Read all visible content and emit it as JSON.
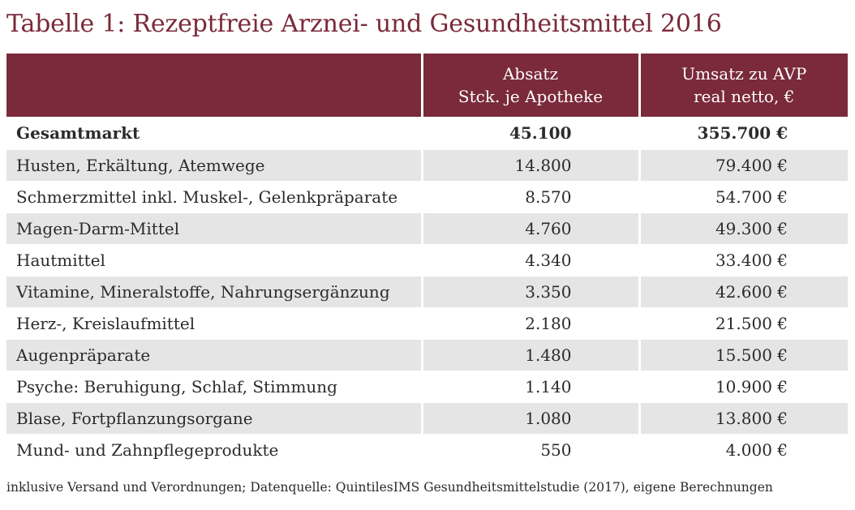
{
  "title": "Tabelle 1: Rezeptfreie Arznei- und Gesundheitsmittel 2016",
  "columns": {
    "label": "",
    "absatz_line1": "Absatz",
    "absatz_line2": "Stck. je Apotheke",
    "umsatz_line1": "Umsatz zu AVP",
    "umsatz_line2": "real netto, €"
  },
  "rows": [
    {
      "label": "Gesamtmarkt",
      "absatz": "45.100",
      "umsatz": "355.700 €"
    },
    {
      "label": "Husten, Erkältung, Atemwege",
      "absatz": "14.800",
      "umsatz": "79.400 €"
    },
    {
      "label": "Schmerzmittel inkl. Muskel-, Gelenkpräparate",
      "absatz": "8.570",
      "umsatz": "54.700 €"
    },
    {
      "label": "Magen-Darm-Mittel",
      "absatz": "4.760",
      "umsatz": "49.300 €"
    },
    {
      "label": "Hautmittel",
      "absatz": "4.340",
      "umsatz": "33.400 €"
    },
    {
      "label": "Vitamine, Mineralstoffe, Nahrungsergänzung",
      "absatz": "3.350",
      "umsatz": "42.600 €"
    },
    {
      "label": "Herz-, Kreislaufmittel",
      "absatz": "2.180",
      "umsatz": "21.500 €"
    },
    {
      "label": "Augenpräparate",
      "absatz": "1.480",
      "umsatz": "15.500 €"
    },
    {
      "label": "Psyche: Beruhigung, Schlaf, Stimmung",
      "absatz": "1.140",
      "umsatz": "10.900 €"
    },
    {
      "label": "Blase, Fortpflanzungsorgane",
      "absatz": "1.080",
      "umsatz": "13.800 €"
    },
    {
      "label": "Mund- und Zahnpflegeprodukte",
      "absatz": "550",
      "umsatz": "4.000 €"
    }
  ],
  "footnote": "inklusive Versand und Verordnungen; Datenquelle: QuintilesIMS Gesundheitsmittelstudie (2017), eigene Berechnungen",
  "colors": {
    "header_bg": "#7a2a3a",
    "title": "#7a2a3a",
    "row_shade": "#e5e5e5"
  }
}
